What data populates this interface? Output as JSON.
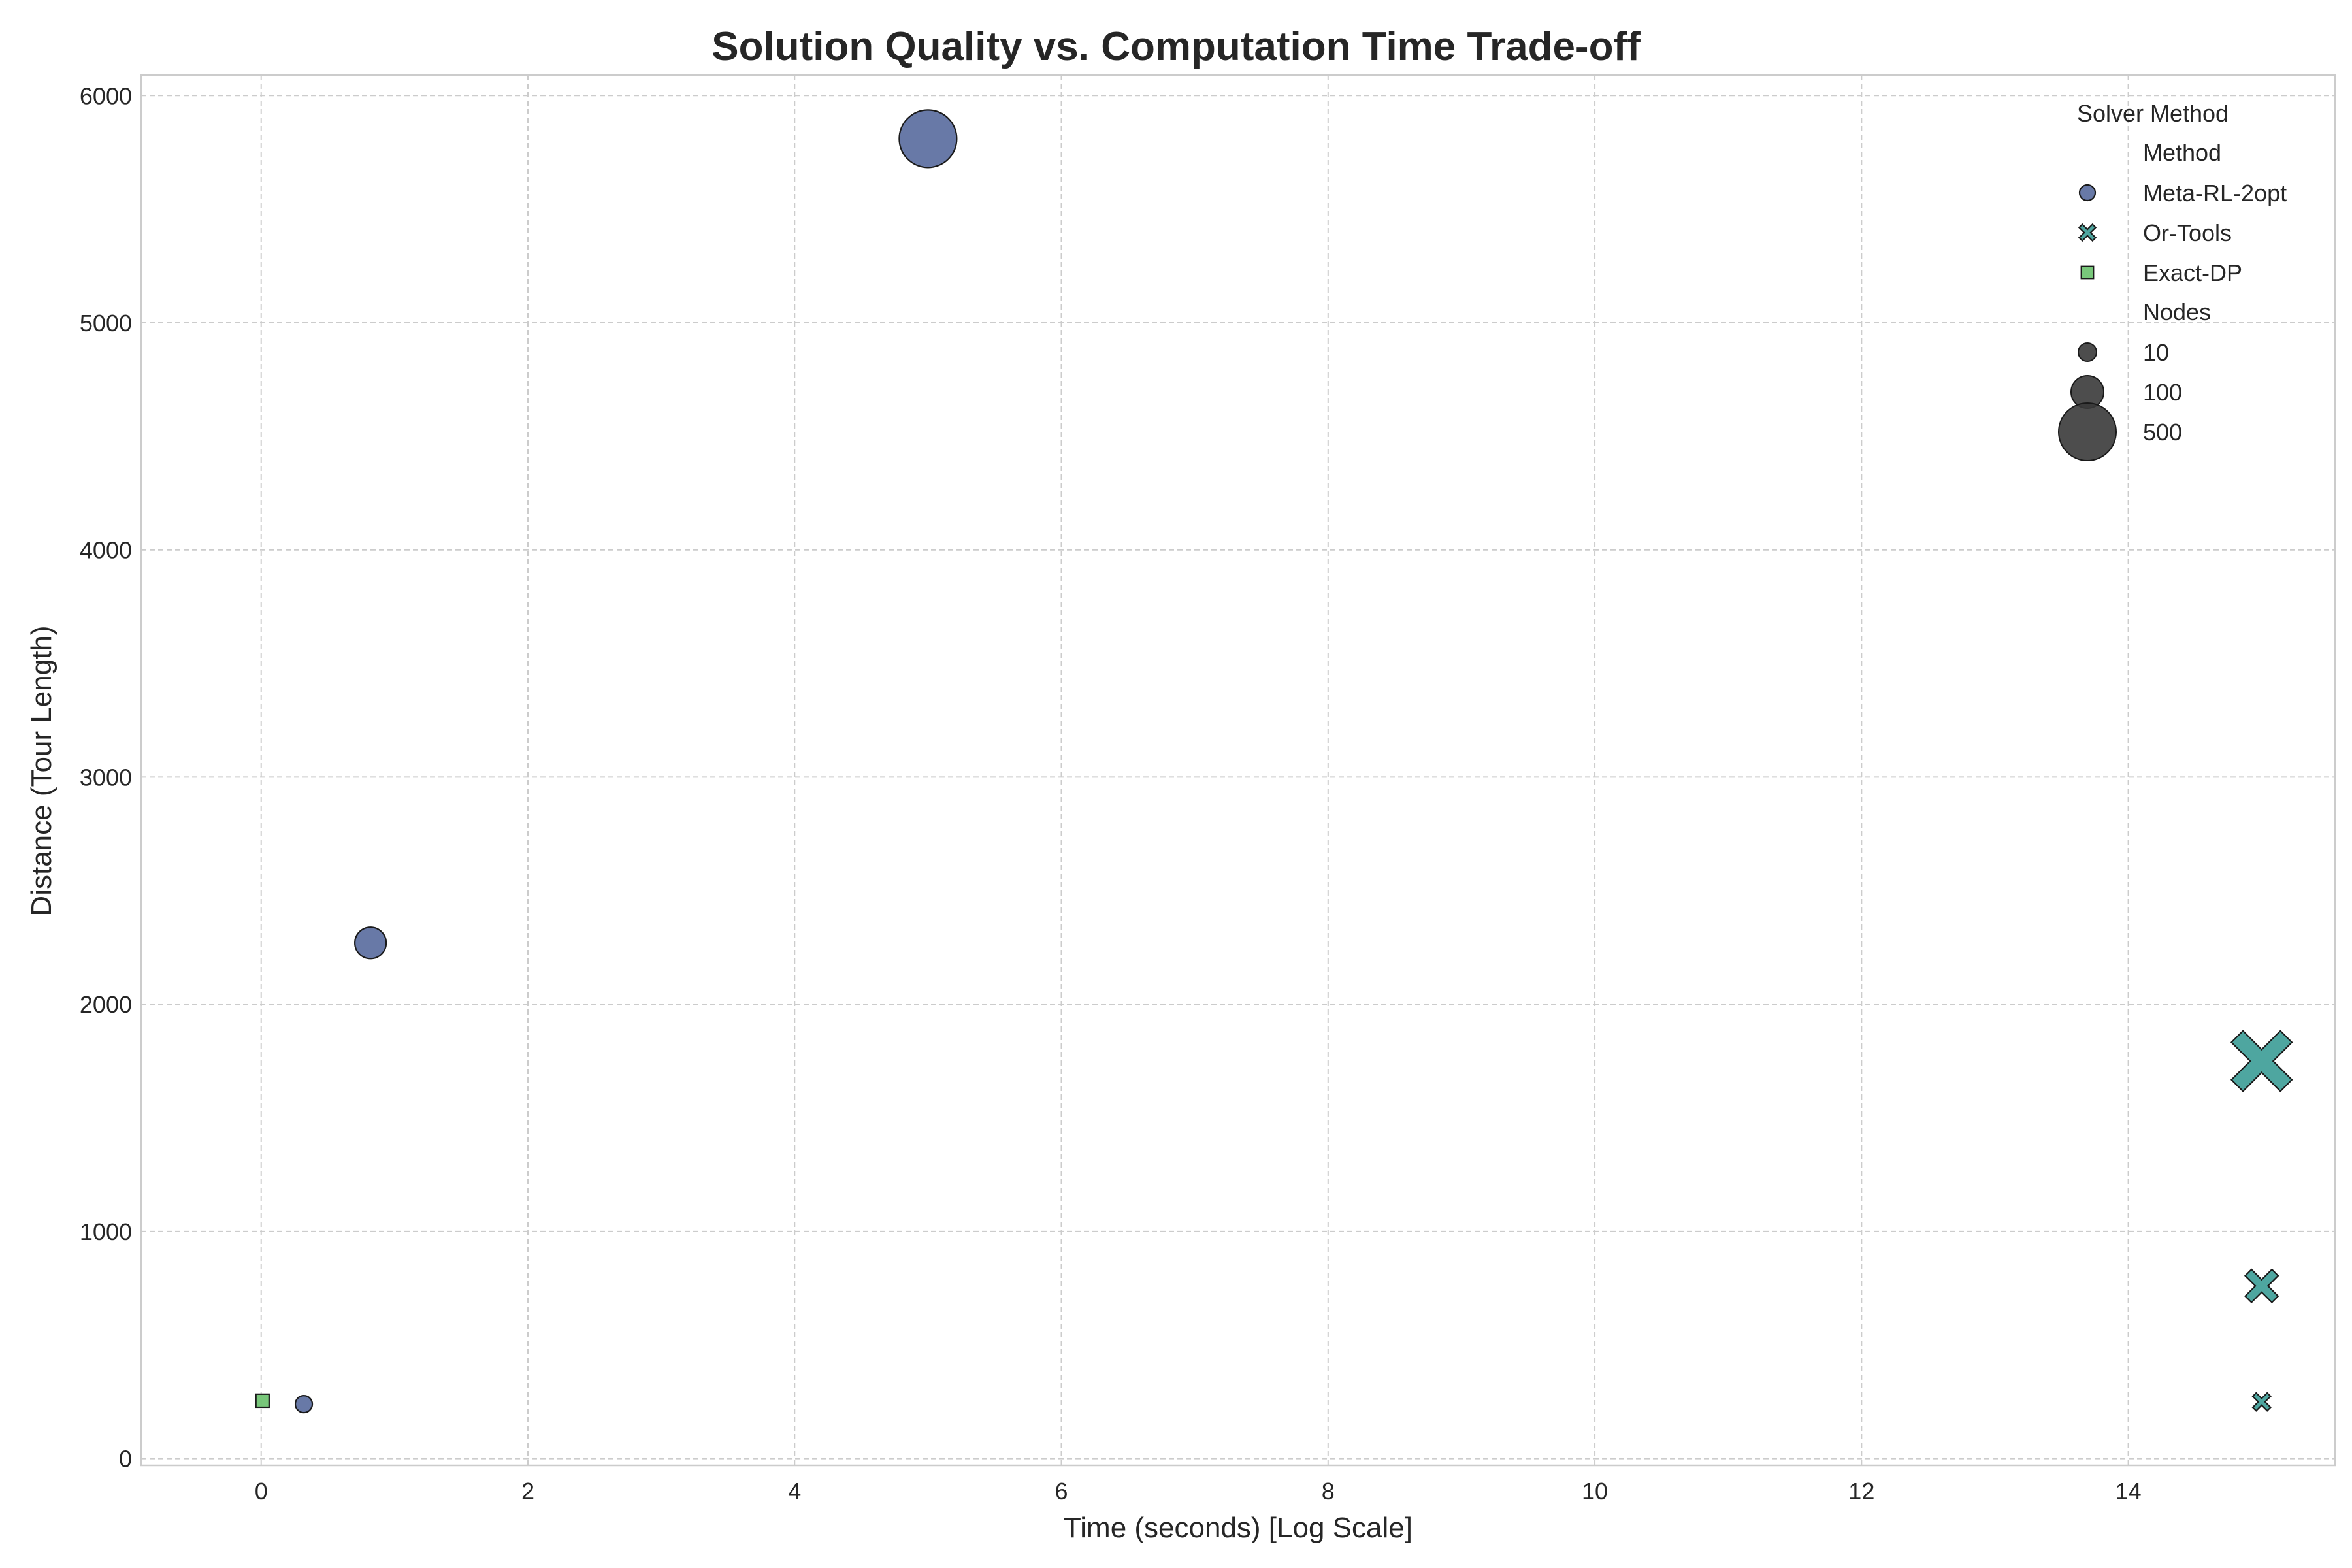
{
  "chart_data": {
    "type": "scatter",
    "title": "Solution Quality vs. Computation Time Trade-off",
    "xlabel": "Time (seconds) [Log Scale]",
    "ylabel": "Distance (Tour Length)",
    "xlim": [
      -0.9,
      15.55
    ],
    "ylim": [
      -30,
      6090
    ],
    "xticks": [
      0,
      2,
      4,
      6,
      8,
      10,
      12,
      14
    ],
    "yticks": [
      0,
      1000,
      2000,
      3000,
      4000,
      5000,
      6000
    ],
    "grid": true,
    "legend_placement": "top-right",
    "legend": {
      "title": "Solver Method",
      "method_heading": "Method",
      "size_heading": "Nodes",
      "size_entries": [
        "10",
        "100",
        "500"
      ]
    },
    "series": [
      {
        "name": "Meta-RL-2opt",
        "marker": "circle",
        "color": "#5b6e9f",
        "points": [
          {
            "x": 0.32,
            "y": 240,
            "nodes": 10
          },
          {
            "x": 0.82,
            "y": 2270,
            "nodes": 100
          },
          {
            "x": 5.0,
            "y": 5810,
            "nodes": 500
          }
        ]
      },
      {
        "name": "Or-Tools",
        "marker": "x",
        "color": "#3f9e98",
        "points": [
          {
            "x": 15.0,
            "y": 250,
            "nodes": 10
          },
          {
            "x": 15.0,
            "y": 760,
            "nodes": 100
          },
          {
            "x": 15.0,
            "y": 1750,
            "nodes": 500
          }
        ]
      },
      {
        "name": "Exact-DP",
        "marker": "square",
        "color": "#6cc26f",
        "points": [
          {
            "x": 0.01,
            "y": 255,
            "nodes": 10
          }
        ]
      }
    ]
  }
}
